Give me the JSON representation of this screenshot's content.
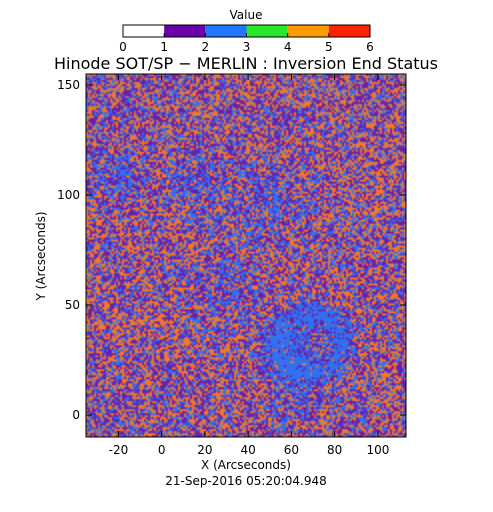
{
  "chart_data": {
    "type": "heatmap",
    "title": "Hinode SOT/SP − MERLIN : Inversion End Status",
    "xlabel": "X (Arcseconds)",
    "ylabel": "Y (Arcseconds)",
    "footer": "21-Sep-2016 05:20:04.948",
    "xlim": [
      -35,
      113
    ],
    "ylim": [
      -10,
      155
    ],
    "x_ticks": [
      -20,
      0,
      20,
      40,
      60,
      80,
      100
    ],
    "y_ticks": [
      0,
      50,
      100,
      150
    ],
    "colorbar": {
      "label": "Value",
      "range": [
        0,
        6
      ],
      "tick_values": [
        0,
        1,
        2,
        3,
        4,
        5,
        6
      ],
      "tick_labels": [
        "0",
        "1",
        "2",
        "3",
        "4",
        "5",
        "6"
      ],
      "segments": [
        {
          "from": 0,
          "to": 1,
          "color": "#ffffff"
        },
        {
          "from": 1,
          "to": 2,
          "color": "#6a00a8"
        },
        {
          "from": 2,
          "to": 3,
          "color": "#1e78ff"
        },
        {
          "from": 3,
          "to": 4,
          "color": "#28e628"
        },
        {
          "from": 4,
          "to": 5,
          "color": "#ff9900"
        },
        {
          "from": 5,
          "to": 6,
          "color": "#ff2200"
        }
      ]
    },
    "value_mix": [
      {
        "value": 1,
        "color": "#6a1eaa",
        "share": 0.36
      },
      {
        "value": 2,
        "color": "#3270f0",
        "share": 0.26
      },
      {
        "value": 4,
        "color": "#f07a2a",
        "share": 0.38
      }
    ],
    "notes": "Noisy per-pixel map of inversion end-status values (mostly 1, 2 and 4); the blue share rises in a ring-shaped region around X≈50–85, Y≈10–50 and a patch near X≈-25–10, Y≈100–115."
  }
}
